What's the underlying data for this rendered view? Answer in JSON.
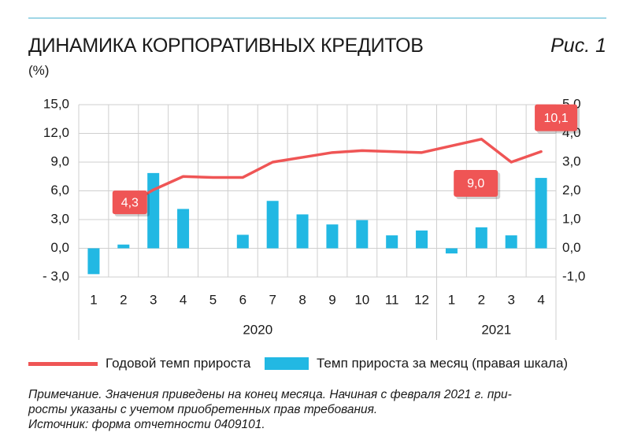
{
  "header": {
    "title": "ДИНАМИКА КОРПОРАТИВНЫХ КРЕДИТОВ",
    "figure_label": "Рис. 1",
    "unit": "(%)"
  },
  "chart_data": {
    "type": "bar",
    "title": "ДИНАМИКА КОРПОРАТИВНЫХ КРЕДИТОВ",
    "categories": [
      "1",
      "2",
      "3",
      "4",
      "5",
      "6",
      "7",
      "8",
      "9",
      "10",
      "11",
      "12",
      "1",
      "2",
      "3",
      "4"
    ],
    "year_groups": [
      {
        "label": "2020",
        "count": 12
      },
      {
        "label": "2021",
        "count": 4
      }
    ],
    "left_axis": {
      "ylim": [
        -3.0,
        15.0
      ],
      "ticks": [
        "- 3,0",
        "0,0",
        "3,0",
        "6,0",
        "9,0",
        "12,0",
        "15,0"
      ]
    },
    "right_axis": {
      "ylim": [
        -1.0,
        5.0
      ],
      "ticks": [
        "-1,0",
        "0,0",
        "1,0",
        "2,0",
        "3,0",
        "4,0",
        "5,0"
      ]
    },
    "grid": true,
    "series": [
      {
        "name": "Годовой темп прироста",
        "type": "line",
        "axis": "left",
        "color": "#ef5555",
        "values": [
          null,
          4.3,
          6.1,
          7.5,
          7.4,
          7.4,
          9.0,
          9.5,
          10.0,
          10.2,
          10.1,
          10.0,
          10.7,
          11.4,
          9.0,
          10.1
        ]
      },
      {
        "name": "Темп прироста за месяц (правая шкала)",
        "type": "bar",
        "axis": "right",
        "color": "#22b8e3",
        "values": [
          -0.9,
          0.13,
          2.62,
          1.37,
          0.0,
          0.47,
          1.65,
          1.18,
          0.83,
          0.98,
          0.45,
          0.62,
          -0.18,
          0.73,
          0.45,
          2.45
        ]
      }
    ],
    "annotations": [
      {
        "text": "4,3",
        "index": 1
      },
      {
        "text": "9,0",
        "index": 14
      },
      {
        "text": "10,1",
        "index": 15
      }
    ]
  },
  "legend": {
    "line_label": "Годовой темп прироста",
    "bar_label": "Темп прироста за месяц (правая шкала)"
  },
  "notes": [
    "Примечание. Значения приведены на конец месяца. Начиная с февраля 2021 г. при-",
    "росты указаны с учетом приобретенных прав требования.",
    "Источник: форма отчетности 0409101."
  ]
}
